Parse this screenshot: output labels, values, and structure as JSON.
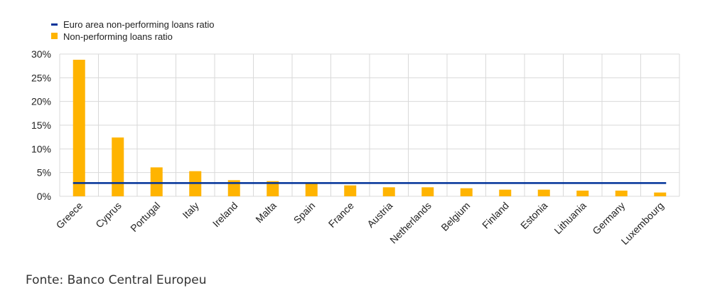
{
  "chart_data": {
    "type": "bar",
    "categories": [
      "Greece",
      "Cyprus",
      "Portugal",
      "Italy",
      "Ireland",
      "Malta",
      "Spain",
      "France",
      "Austria",
      "Netherlands",
      "Belgium",
      "Finland",
      "Estonia",
      "Lithuania",
      "Germany",
      "Luxembourg"
    ],
    "series": [
      {
        "name": "Non-performing loans ratio",
        "type": "bar",
        "color": "#FFB400",
        "values": [
          28.8,
          12.4,
          6.1,
          5.3,
          3.4,
          3.2,
          2.8,
          2.3,
          1.9,
          1.9,
          1.7,
          1.4,
          1.4,
          1.2,
          1.2,
          0.8
        ]
      },
      {
        "name": "Euro area non-performing loans ratio",
        "type": "line",
        "color": "#003299",
        "value": 2.8
      }
    ],
    "yticks": [
      "0%",
      "5%",
      "10%",
      "15%",
      "20%",
      "25%",
      "30%"
    ],
    "ylim": [
      0,
      30
    ],
    "grid": true,
    "legend_position": "top-left"
  },
  "source_text": "Fonte: Banco Central Europeu"
}
